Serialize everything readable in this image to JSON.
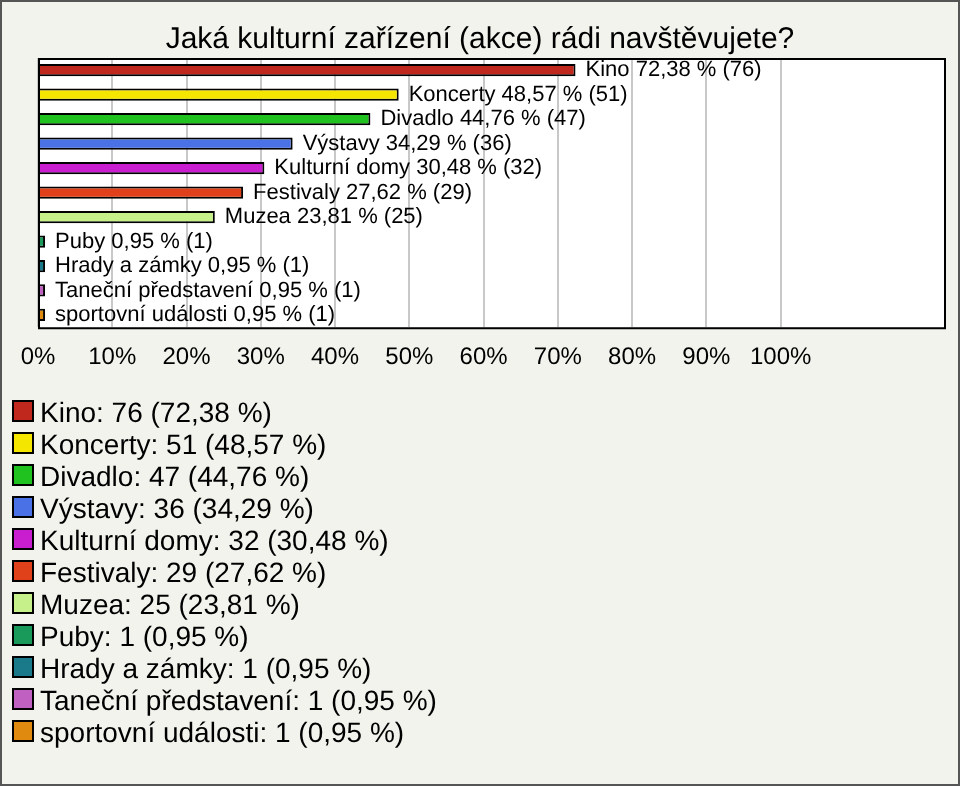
{
  "chart_data": {
    "type": "bar",
    "orientation": "horizontal",
    "title": "Jaká kulturní zařízení (akce) rádi navštěvujete?",
    "categories": [
      "Kino",
      "Koncerty",
      "Divadlo",
      "Výstavy",
      "Kulturní domy",
      "Festivaly",
      "Muzea",
      "Puby",
      "Hrady a zámky",
      "Taneční představení",
      "sportovní události"
    ],
    "values": [
      72.38,
      48.57,
      44.76,
      34.29,
      30.48,
      27.62,
      23.81,
      0.95,
      0.95,
      0.95,
      0.95
    ],
    "colors": [
      "#c0281e",
      "#f5e600",
      "#1fc21f",
      "#4a72e6",
      "#c81ed0",
      "#e0401a",
      "#c6f08a",
      "#1a9a5a",
      "#1a7a8a",
      "#c060c0",
      "#e08a10"
    ],
    "value_labels": [
      "72,38 % (76)",
      "48,57 % (51)",
      "44,76 % (47)",
      "34,29 % (36)",
      "30,48 % (32)",
      "27,62 % (29)",
      "23,81 % (25)",
      "0,95 % (1)",
      "0,95 % (1)",
      "0,95 % (1)",
      "0,95 % (1)"
    ],
    "xlim": [
      0,
      122
    ],
    "xticks": [
      {
        "value": 0,
        "label": "0%"
      },
      {
        "value": 10,
        "label": "10%"
      },
      {
        "value": 20,
        "label": "20%"
      },
      {
        "value": 30,
        "label": "30%"
      },
      {
        "value": 40,
        "label": "40%"
      },
      {
        "value": 50,
        "label": "50%"
      },
      {
        "value": 60,
        "label": "60%"
      },
      {
        "value": 70,
        "label": "70%"
      },
      {
        "value": 80,
        "label": "80%"
      },
      {
        "value": 90,
        "label": "90%"
      },
      {
        "value": 100,
        "label": "100%"
      }
    ],
    "grid": "x",
    "tick_labels": "x",
    "annotations": [
      "Kino: 76 (72,38 %)",
      "Koncerty: 51 (48,57 %)",
      "Divadlo: 47 (44,76 %)",
      "Výstavy: 36 (34,29 %)",
      "Kulturní domy: 32 (30,48 %)",
      "Festivaly: 29 (27,62 %)",
      "Muzea: 25 (23,81 %)",
      "Puby: 1 (0,95 %)",
      "Hrady a zámky: 1 (0,95 %)",
      "Taneční představení: 1 (0,95 %)",
      "sportovní události: 1 (0,95 %)"
    ]
  }
}
